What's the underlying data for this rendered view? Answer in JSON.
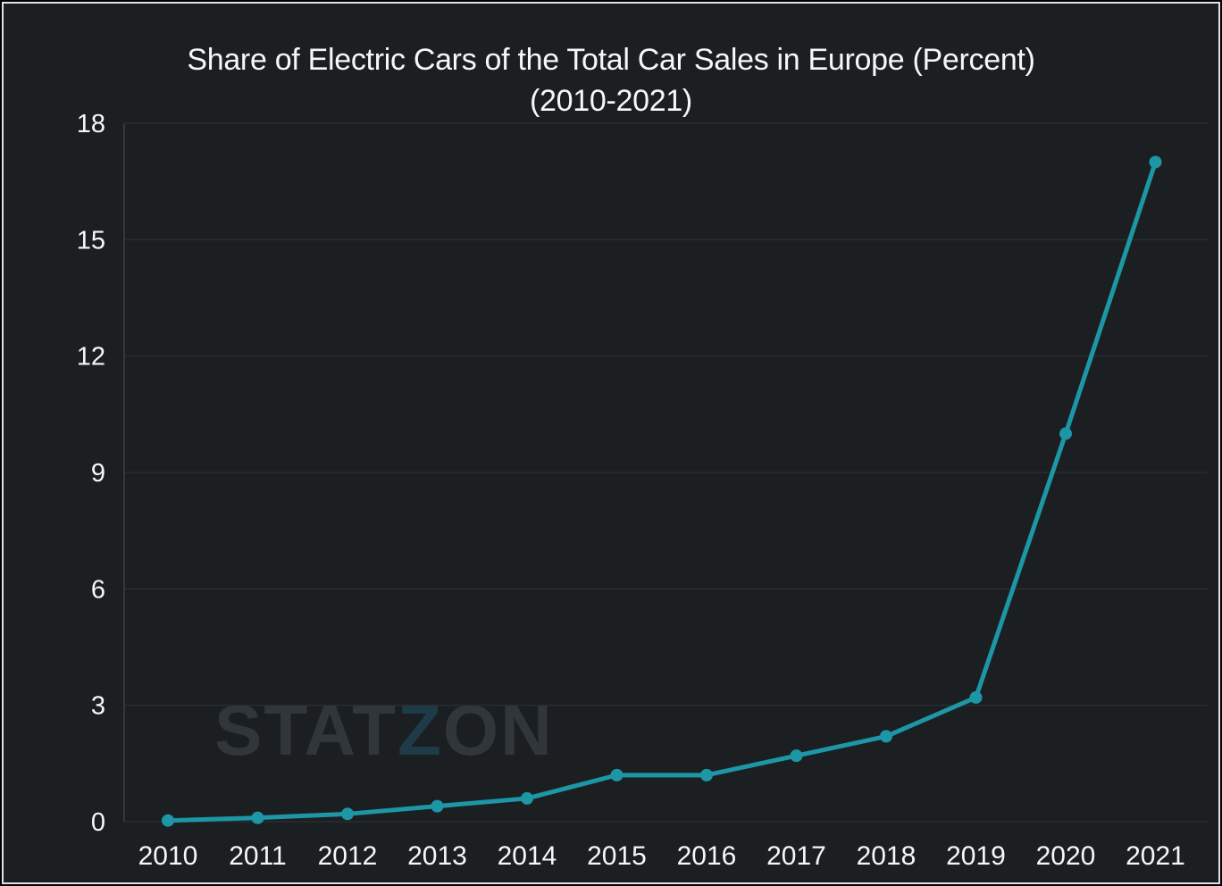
{
  "chart_data": {
    "type": "line",
    "title": "Share of Electric Cars of the Total Car Sales in Europe (Percent)",
    "subtitle": "(2010-2021)",
    "x": [
      "2010",
      "2011",
      "2012",
      "2013",
      "2014",
      "2015",
      "2016",
      "2017",
      "2018",
      "2019",
      "2020",
      "2021"
    ],
    "values": [
      0.03,
      0.1,
      0.2,
      0.4,
      0.6,
      1.2,
      1.2,
      1.7,
      2.2,
      3.2,
      10.0,
      17.0
    ],
    "xlabel": "",
    "ylabel": "",
    "ylim": [
      0,
      18
    ],
    "yticks": [
      0,
      3,
      6,
      9,
      12,
      15,
      18
    ],
    "grid": true,
    "legend": false,
    "marker": "circle"
  },
  "watermark": {
    "part1": "STAT",
    "part2": "Z",
    "part3": "ON"
  },
  "colors": {
    "background": "#1b1f22",
    "frame": "#e2e2e2",
    "line": "#1d96a6",
    "marker": "#1d96a6",
    "grid": "#282d31",
    "axis": "#3a4045",
    "text": "#f7f7f7",
    "watermark": "#31363a",
    "watermark_accent": "#1d3c47"
  }
}
